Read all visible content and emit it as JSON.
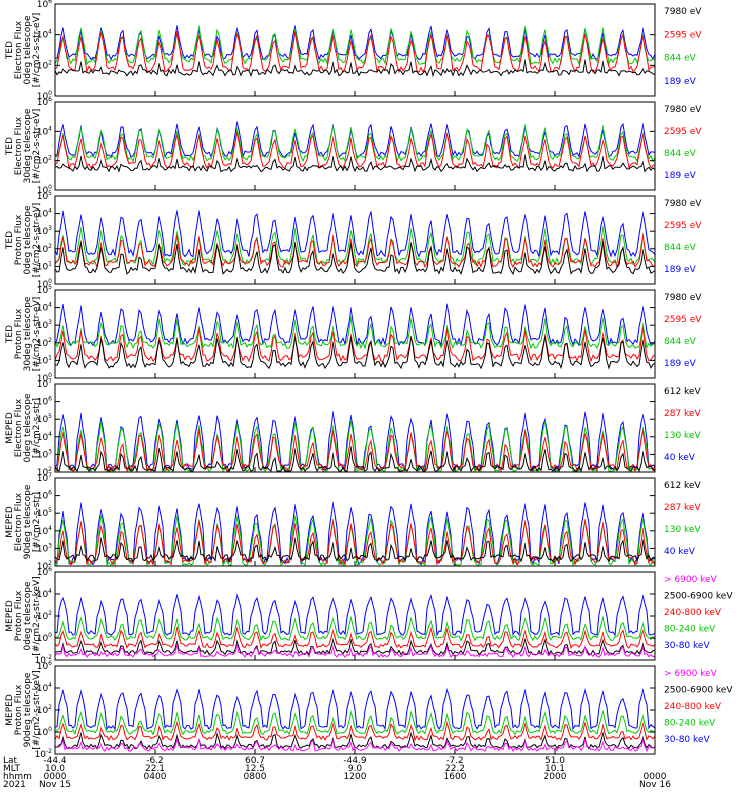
{
  "chart_data": [
    {
      "type": "line",
      "ylabel_lines": [
        "TED",
        "Electron Flux",
        "0deg telescope",
        "[#/cm2-s-str-eV]"
      ],
      "y_tick_labels": [
        "10^6",
        "10^4",
        "10^2",
        "10^0"
      ],
      "yscale": "log",
      "ylim": [
        1,
        1000000
      ],
      "series": [
        {
          "name": "7980 eV",
          "color": "#000000",
          "base": 35,
          "peak": 250
        },
        {
          "name": "2595 eV",
          "color": "#ff0000",
          "base": 60,
          "peak": 20000
        },
        {
          "name": "844 eV",
          "color": "#00c800",
          "base": 200,
          "peak": 40000
        },
        {
          "name": "189 eV",
          "color": "#0000ff",
          "base": 400,
          "peak": 50000
        }
      ]
    },
    {
      "type": "line",
      "ylabel_lines": [
        "TED",
        "Electron Flux",
        "30deg telescope",
        "[#/cm2-s-str-eV]"
      ],
      "y_tick_labels": [
        "10^6",
        "10^4",
        "10^2",
        "10^0"
      ],
      "yscale": "log",
      "ylim": [
        1,
        1000000
      ],
      "series": [
        {
          "name": "7980 eV",
          "color": "#000000",
          "base": 30,
          "peak": 250
        },
        {
          "name": "2595 eV",
          "color": "#ff0000",
          "base": 50,
          "peak": 10000
        },
        {
          "name": "844 eV",
          "color": "#00c800",
          "base": 150,
          "peak": 30000
        },
        {
          "name": "189 eV",
          "color": "#0000ff",
          "base": 300,
          "peak": 50000
        }
      ]
    },
    {
      "type": "line",
      "ylabel_lines": [
        "TED",
        "Proton Flux",
        "0deg telescope",
        "[#/cm2-s-str-eV]"
      ],
      "y_tick_labels": [
        "10^5",
        "10^4",
        "10^3",
        "10^2",
        "10^1",
        "10^0"
      ],
      "yscale": "log",
      "ylim": [
        1,
        100000
      ],
      "series": [
        {
          "name": "7980 eV",
          "color": "#000000",
          "base": 6,
          "peak": 300
        },
        {
          "name": "2595 eV",
          "color": "#ff0000",
          "base": 15,
          "peak": 800
        },
        {
          "name": "844 eV",
          "color": "#00c800",
          "base": 20,
          "peak": 2000
        },
        {
          "name": "189 eV",
          "color": "#0000ff",
          "base": 60,
          "peak": 20000
        }
      ]
    },
    {
      "type": "line",
      "ylabel_lines": [
        "TED",
        "Proton Flux",
        "30deg telescope",
        "[#/cm2-s-str-eV]"
      ],
      "y_tick_labels": [
        "10^5",
        "10^4",
        "10^3",
        "10^2",
        "10^1",
        "10^0"
      ],
      "yscale": "log",
      "ylim": [
        1,
        100000
      ],
      "series": [
        {
          "name": "7980 eV",
          "color": "#000000",
          "base": 6,
          "peak": 300
        },
        {
          "name": "2595 eV",
          "color": "#ff0000",
          "base": 15,
          "peak": 800
        },
        {
          "name": "844 eV",
          "color": "#00c800",
          "base": 80,
          "peak": 3000
        },
        {
          "name": "189 eV",
          "color": "#0000ff",
          "base": 120,
          "peak": 20000
        }
      ]
    },
    {
      "type": "line",
      "ylabel_lines": [
        "MEPED",
        "Electron Flux",
        "0deg telescope",
        "[#/cm2-s-str]"
      ],
      "y_tick_labels": [
        "10^7",
        "10^6",
        "10^5",
        "10^4",
        "10^3",
        "10^2"
      ],
      "yscale": "log",
      "ylim": [
        100,
        10000000
      ],
      "series": [
        {
          "name": "612 keV",
          "color": "#000000",
          "base": 150,
          "peak": 3000
        },
        {
          "name": "287 keV",
          "color": "#ff0000",
          "base": 180,
          "peak": 30000
        },
        {
          "name": "130 keV",
          "color": "#00c800",
          "base": 120,
          "peak": 100000
        },
        {
          "name": "40 keV",
          "color": "#0000ff",
          "base": 200,
          "peak": 300000
        }
      ]
    },
    {
      "type": "line",
      "ylabel_lines": [
        "MEPED",
        "Electron Flux",
        "90deg telescope",
        "[#/cm2-s-str]"
      ],
      "y_tick_labels": [
        "10^7",
        "10^6",
        "10^5",
        "10^4",
        "10^3",
        "10^2"
      ],
      "yscale": "log",
      "ylim": [
        100,
        10000000
      ],
      "series": [
        {
          "name": "612 keV",
          "color": "#000000",
          "base": 300,
          "peak": 5000
        },
        {
          "name": "287 keV",
          "color": "#ff0000",
          "base": 200,
          "peak": 50000
        },
        {
          "name": "130 keV",
          "color": "#00c800",
          "base": 150,
          "peak": 100000
        },
        {
          "name": "40 keV",
          "color": "#0000ff",
          "base": 200,
          "peak": 500000
        }
      ]
    },
    {
      "type": "line",
      "ylabel_lines": [
        "MEPED",
        "Proton Flux",
        "0deg telescope",
        "[#/cm2-s-str-keV]"
      ],
      "y_tick_labels": [
        "10^6",
        "10^4",
        "10^2",
        "10^0",
        "10^-2"
      ],
      "yscale": "log",
      "ylim": [
        0.01,
        1000000
      ],
      "series": [
        {
          "name": "> 6900 keV",
          "color": "#ff00ff",
          "base": 0.03,
          "peak": 0.3
        },
        {
          "name": "2500-6900 keV",
          "color": "#000000",
          "base": 0.05,
          "peak": 1
        },
        {
          "name": "240-800 keV",
          "color": "#ff0000",
          "base": 0.2,
          "peak": 10
        },
        {
          "name": "80-240 keV",
          "color": "#00c800",
          "base": 1,
          "peak": 100
        },
        {
          "name": "30-80 keV",
          "color": "#0000ff",
          "base": 3,
          "peak": 10000
        }
      ]
    },
    {
      "type": "line",
      "ylabel_lines": [
        "MEPED",
        "Proton Flux",
        "90deg telescope",
        "[#/cm2-s-str-keV]"
      ],
      "y_tick_labels": [
        "10^6",
        "10^4",
        "10^2",
        "10^0",
        "10^-2"
      ],
      "yscale": "log",
      "ylim": [
        0.01,
        1000000
      ],
      "series": [
        {
          "name": "> 6900 keV",
          "color": "#ff00ff",
          "base": 0.03,
          "peak": 0.3
        },
        {
          "name": "2500-6900 keV",
          "color": "#000000",
          "base": 0.05,
          "peak": 1
        },
        {
          "name": "240-800 keV",
          "color": "#ff0000",
          "base": 0.3,
          "peak": 10
        },
        {
          "name": "80-240 keV",
          "color": "#00c800",
          "base": 1,
          "peak": 100
        },
        {
          "name": "30-80 keV",
          "color": "#0000ff",
          "base": 3,
          "peak": 10000
        }
      ]
    }
  ],
  "x_axis": {
    "row_labels": [
      "Lat",
      "MLT",
      "hhmm",
      "2021"
    ],
    "ticks": [
      {
        "lat": "-44.4",
        "mlt": "10.0",
        "hhmm": "0000",
        "date": "Nov 15"
      },
      {
        "lat": "-6.2",
        "mlt": "22.1",
        "hhmm": "0400",
        "date": ""
      },
      {
        "lat": "60.7",
        "mlt": "12.5",
        "hhmm": "0800",
        "date": ""
      },
      {
        "lat": "-44.9",
        "mlt": "9.0",
        "hhmm": "1200",
        "date": ""
      },
      {
        "lat": "-7.2",
        "mlt": "22.2",
        "hhmm": "1600",
        "date": ""
      },
      {
        "lat": "51.0",
        "mlt": "10.1",
        "hhmm": "2000",
        "date": ""
      },
      {
        "lat": "",
        "mlt": "",
        "hhmm": "0000",
        "date": "Nov 16"
      }
    ]
  }
}
